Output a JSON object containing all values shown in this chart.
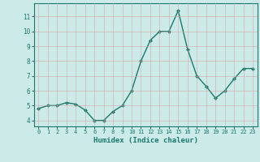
{
  "x": [
    0,
    1,
    2,
    3,
    4,
    5,
    6,
    7,
    8,
    9,
    10,
    11,
    12,
    13,
    14,
    15,
    16,
    17,
    18,
    19,
    20,
    21,
    22,
    23
  ],
  "y": [
    4.8,
    5.0,
    5.0,
    5.2,
    5.1,
    4.7,
    4.0,
    4.0,
    4.6,
    5.0,
    6.0,
    8.0,
    9.4,
    10.0,
    10.0,
    11.4,
    8.8,
    7.0,
    6.3,
    5.5,
    6.0,
    6.8,
    7.5,
    7.5
  ],
  "line_color": "#1a7a6e",
  "marker": "D",
  "marker_size": 2,
  "bg_color": "#cceae7",
  "grid_color": "#b0d8d4",
  "xlabel": "Humidex (Indice chaleur)",
  "ylabel_ticks": [
    4,
    5,
    6,
    7,
    8,
    9,
    10,
    11
  ],
  "xlim": [
    -0.5,
    23.5
  ],
  "ylim": [
    3.6,
    11.9
  ]
}
